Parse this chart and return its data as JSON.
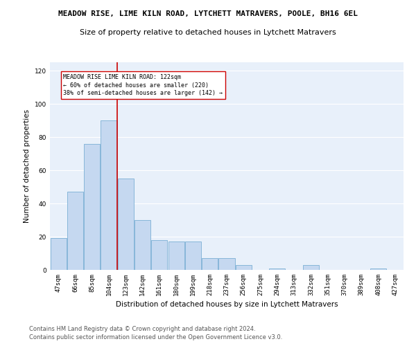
{
  "title": "MEADOW RISE, LIME KILN ROAD, LYTCHETT MATRAVERS, POOLE, BH16 6EL",
  "subtitle": "Size of property relative to detached houses in Lytchett Matravers",
  "xlabel": "Distribution of detached houses by size in Lytchett Matravers",
  "ylabel": "Number of detached properties",
  "footer_line1": "Contains HM Land Registry data © Crown copyright and database right 2024.",
  "footer_line2": "Contains public sector information licensed under the Open Government Licence v3.0.",
  "categories": [
    "47sqm",
    "66sqm",
    "85sqm",
    "104sqm",
    "123sqm",
    "142sqm",
    "161sqm",
    "180sqm",
    "199sqm",
    "218sqm",
    "237sqm",
    "256sqm",
    "275sqm",
    "294sqm",
    "313sqm",
    "332sqm",
    "351sqm",
    "370sqm",
    "389sqm",
    "408sqm",
    "427sqm"
  ],
  "values": [
    19,
    47,
    76,
    90,
    55,
    30,
    18,
    17,
    17,
    7,
    7,
    3,
    0,
    1,
    0,
    3,
    0,
    0,
    0,
    1,
    0
  ],
  "bar_color": "#c5d8f0",
  "bar_edge_color": "#7bafd4",
  "bg_color": "#e8f0fa",
  "grid_color": "#ffffff",
  "vline_color": "#cc0000",
  "vline_x_index": 4,
  "annotation_text": "MEADOW RISE LIME KILN ROAD: 122sqm\n← 60% of detached houses are smaller (220)\n38% of semi-detached houses are larger (142) →",
  "ylim": [
    0,
    125
  ],
  "yticks": [
    0,
    20,
    40,
    60,
    80,
    100,
    120
  ],
  "title_fontsize": 8,
  "subtitle_fontsize": 8,
  "label_fontsize": 7.5,
  "tick_fontsize": 6.5,
  "footer_fontsize": 6
}
